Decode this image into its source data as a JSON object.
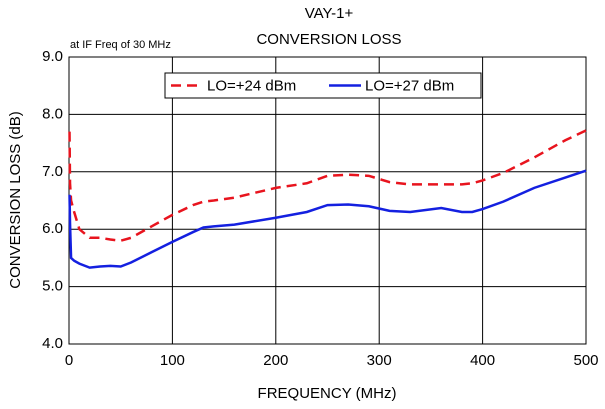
{
  "chart_data": {
    "type": "line",
    "title": "VAY-1+",
    "subtitle": "CONVERSION LOSS",
    "annotation": "at IF Freq of 30 MHz",
    "x_label": "FREQUENCY (MHz)",
    "y_label": "CONVERSION LOSS (dB)",
    "x": [
      0.5,
      1,
      2,
      5,
      10,
      20,
      30,
      40,
      50,
      60,
      80,
      100,
      120,
      130,
      140,
      160,
      200,
      230,
      250,
      270,
      290,
      310,
      330,
      360,
      380,
      390,
      400,
      420,
      450,
      480,
      500
    ],
    "series": [
      {
        "name": "LO=+24 dBm",
        "color": "#e8141e",
        "dashed": true,
        "values": [
          7.7,
          6.8,
          6.5,
          6.3,
          6.0,
          5.85,
          5.85,
          5.82,
          5.8,
          5.85,
          6.05,
          6.25,
          6.42,
          6.48,
          6.5,
          6.55,
          6.72,
          6.8,
          6.93,
          6.95,
          6.93,
          6.82,
          6.78,
          6.78,
          6.78,
          6.8,
          6.85,
          6.98,
          7.25,
          7.55,
          7.72
        ]
      },
      {
        "name": "LO=+27 dBm",
        "color": "#1420e0",
        "dashed": false,
        "values": [
          6.6,
          6.1,
          5.5,
          5.45,
          5.4,
          5.33,
          5.35,
          5.36,
          5.35,
          5.42,
          5.6,
          5.78,
          5.95,
          6.03,
          6.05,
          6.08,
          6.2,
          6.3,
          6.42,
          6.43,
          6.4,
          6.32,
          6.3,
          6.37,
          6.3,
          6.3,
          6.35,
          6.48,
          6.72,
          6.9,
          7.02
        ]
      }
    ],
    "xlim": [
      0,
      500
    ],
    "xticks": [
      0,
      100,
      200,
      300,
      400,
      500
    ],
    "ylim": [
      4,
      9
    ],
    "yticks": [
      {
        "value": 4,
        "label": "4.0"
      },
      {
        "value": 5,
        "label": "5.0"
      },
      {
        "value": 6,
        "label": "6.0"
      },
      {
        "value": 7,
        "label": "7.0"
      },
      {
        "value": 8,
        "label": "8.0"
      },
      {
        "value": 9,
        "label": "9.0"
      }
    ],
    "grid": true,
    "legend": "upper center"
  }
}
